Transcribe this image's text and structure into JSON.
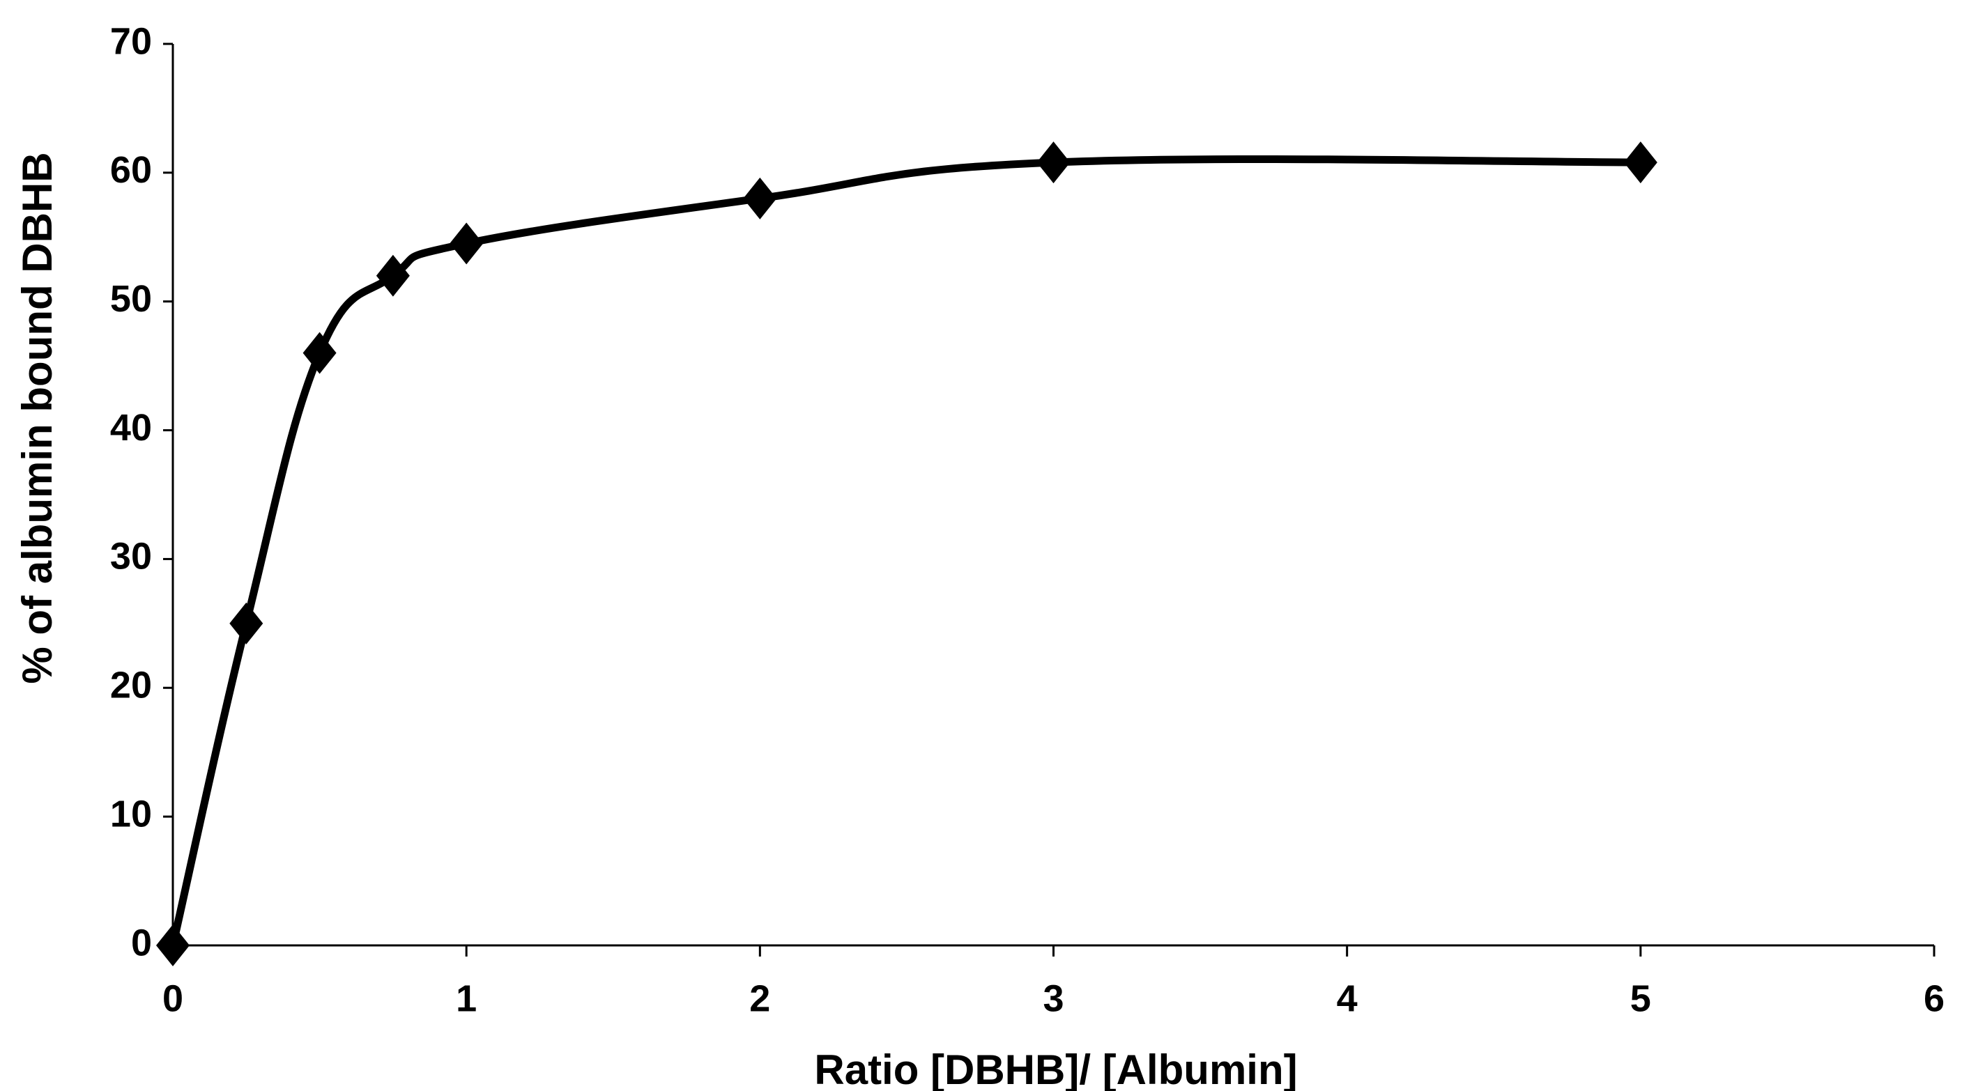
{
  "chart_data": {
    "type": "line",
    "x_label": "Ratio [DBHB]/ [Albumin]",
    "y_label": "% of albumin bound DBHB",
    "x": [
      0,
      0.25,
      0.5,
      0.75,
      1,
      2,
      3,
      5
    ],
    "series": [
      {
        "color": "#000000",
        "marker": "diamond",
        "smooth": true,
        "values": [
          0,
          25,
          46,
          52,
          54.5,
          58,
          60.8,
          60.8
        ]
      }
    ],
    "xlim": [
      0,
      6
    ],
    "xticks": [
      0,
      1,
      2,
      3,
      4,
      5,
      6
    ],
    "ylim": [
      0,
      70
    ],
    "yticks": [
      0,
      10,
      20,
      30,
      40,
      50,
      60,
      70
    ],
    "grid": false
  }
}
